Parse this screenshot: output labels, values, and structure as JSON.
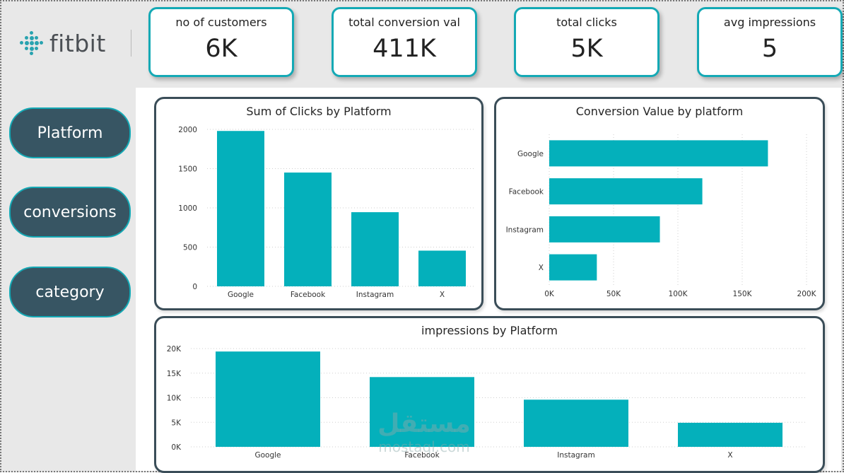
{
  "brand": {
    "name": "fitbit",
    "color": "#29a3b0"
  },
  "kpis": [
    {
      "label": "no of customers",
      "value": "6K"
    },
    {
      "label": "total conversion val",
      "value": "411K"
    },
    {
      "label": "total clicks",
      "value": "5K"
    },
    {
      "label": "avg impressions",
      "value": "5"
    }
  ],
  "nav": [
    {
      "label": "Platform"
    },
    {
      "label": "conversions"
    },
    {
      "label": "category"
    }
  ],
  "colors": {
    "accent": "#14a9b5",
    "bar": "#04b0bb",
    "nav_bg": "#375563",
    "card_border": "#3a4d58"
  },
  "chart_data": [
    {
      "type": "bar",
      "orientation": "vertical",
      "title": "Sum of Clicks by Platform",
      "categories": [
        "Google",
        "Facebook",
        "Instagram",
        "X"
      ],
      "values": [
        1980,
        1450,
        945,
        455
      ],
      "ylim": [
        0,
        2000
      ],
      "yticks": [
        "0",
        "500",
        "1000",
        "1500",
        "2000"
      ],
      "grid": true
    },
    {
      "type": "bar",
      "orientation": "horizontal",
      "title": "Conversion Value by platform",
      "categories": [
        "Google",
        "Facebook",
        "Instagram",
        "X"
      ],
      "values": [
        170000,
        119000,
        86000,
        37000
      ],
      "xlim": [
        0,
        200000
      ],
      "xticks": [
        "0K",
        "50K",
        "100K",
        "150K",
        "200K"
      ],
      "grid": true
    },
    {
      "type": "bar",
      "orientation": "vertical",
      "title": "impressions by Platform",
      "categories": [
        "Google",
        "Facebook",
        "Instagram",
        "X"
      ],
      "values": [
        19400,
        14200,
        9600,
        4900
      ],
      "ylim": [
        0,
        20000
      ],
      "yticks": [
        "0K",
        "5K",
        "10K",
        "15K",
        "20K"
      ],
      "grid": true
    }
  ],
  "watermark": {
    "line1": "مستقل",
    "line2": "mostaql.com"
  }
}
